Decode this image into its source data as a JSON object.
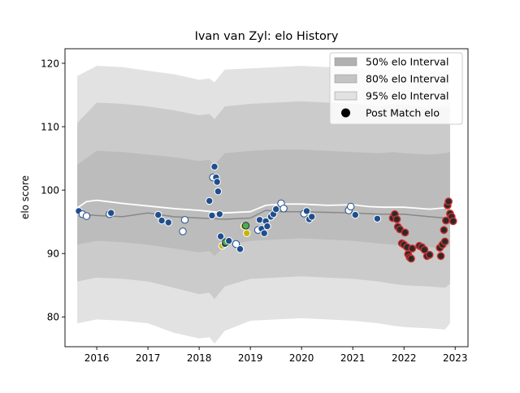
{
  "chart_data": {
    "type": "line",
    "title": "Ivan van Zyl: elo History",
    "xlabel": "",
    "ylabel": "elo score",
    "xlim": [
      2015.38,
      2023.25
    ],
    "ylim": [
      75.3,
      122.3
    ],
    "x_ticks": [
      2016,
      2017,
      2018,
      2019,
      2020,
      2021,
      2022,
      2023
    ],
    "x_tick_labels": [
      "2016",
      "2017",
      "2018",
      "2019",
      "2020",
      "2021",
      "2022",
      "2023"
    ],
    "y_ticks": [
      80,
      90,
      100,
      110,
      120
    ],
    "y_tick_labels": [
      "80",
      "90",
      "100",
      "110",
      "120"
    ],
    "grid": false,
    "legend_position": "top-right",
    "legend": [
      {
        "label": "50% elo Interval",
        "kind": "patch",
        "color": "#b0b0b0"
      },
      {
        "label": "80% elo Interval",
        "kind": "patch",
        "color": "#c4c4c4"
      },
      {
        "label": "95% elo Interval",
        "kind": "patch",
        "color": "#e2e2e2"
      },
      {
        "label": "Post Match elo",
        "kind": "marker",
        "color": "#000000"
      }
    ],
    "colors": {
      "band95": "#e2e2e2",
      "band80": "#cbcbcb",
      "band50": "#bcbcbc",
      "mean_line": "#ffffff",
      "median_line": "#888888",
      "point_blue": "#1f4e8c",
      "point_white": "#ffffff",
      "point_green": "#4caf50",
      "point_yellow": "#c8b400",
      "point_red_edge": "#d23030",
      "point_dark": "#2a2a2a"
    },
    "bands": {
      "x": [
        2015.62,
        2016.0,
        2016.5,
        2017.0,
        2017.5,
        2018.0,
        2018.2,
        2018.3,
        2018.5,
        2019.0,
        2019.5,
        2020.0,
        2020.5,
        2021.0,
        2021.5,
        2021.8,
        2022.0,
        2022.5,
        2022.8,
        2022.9
      ],
      "p95_upper": [
        118.0,
        119.6,
        119.4,
        118.8,
        118.3,
        117.4,
        117.6,
        117.0,
        119.0,
        119.2,
        119.4,
        119.6,
        119.4,
        119.3,
        118.8,
        119.2,
        119.0,
        118.6,
        118.8,
        119.0
      ],
      "p95_lower": [
        79.0,
        79.6,
        79.4,
        79.0,
        77.5,
        76.6,
        76.8,
        75.8,
        77.8,
        79.4,
        79.6,
        79.8,
        79.6,
        79.4,
        79.0,
        78.6,
        78.4,
        78.2,
        78.0,
        79.0
      ],
      "p80_upper": [
        110.6,
        113.8,
        113.6,
        113.2,
        112.6,
        111.8,
        112.0,
        111.2,
        113.2,
        113.6,
        113.8,
        114.0,
        113.8,
        113.6,
        113.2,
        113.6,
        113.4,
        113.0,
        113.2,
        113.4
      ],
      "p80_lower": [
        85.6,
        86.2,
        86.0,
        85.6,
        84.6,
        83.6,
        83.8,
        82.8,
        84.8,
        86.0,
        86.2,
        86.4,
        86.2,
        86.0,
        85.6,
        85.2,
        85.0,
        84.8,
        84.6,
        85.2
      ],
      "p50_upper": [
        104.0,
        106.2,
        106.0,
        105.6,
        105.2,
        104.6,
        104.8,
        104.0,
        105.8,
        106.2,
        106.4,
        106.4,
        106.2,
        106.0,
        105.8,
        106.0,
        105.8,
        105.6,
        105.8,
        106.0
      ],
      "p50_lower": [
        91.4,
        92.0,
        91.8,
        91.4,
        90.8,
        90.2,
        90.4,
        89.6,
        91.2,
        92.0,
        92.2,
        92.4,
        92.2,
        92.0,
        91.6,
        91.4,
        91.2,
        91.0,
        90.8,
        91.4
      ]
    },
    "mean_line": {
      "x": [
        2015.62,
        2015.8,
        2016.0,
        2016.5,
        2017.0,
        2017.5,
        2018.0,
        2018.5,
        2019.0,
        2019.3,
        2019.6,
        2020.0,
        2020.5,
        2021.0,
        2021.3,
        2021.6,
        2022.0,
        2022.5,
        2022.8,
        2022.9
      ],
      "y": [
        97.2,
        98.2,
        98.4,
        97.9,
        97.5,
        97.1,
        96.8,
        96.4,
        96.6,
        97.6,
        97.8,
        97.8,
        97.6,
        97.7,
        97.4,
        97.3,
        97.3,
        97.0,
        97.2,
        97.6
      ]
    },
    "median_line": {
      "x": [
        2015.62,
        2016.0,
        2016.5,
        2017.0,
        2017.5,
        2018.0,
        2018.5,
        2019.0,
        2019.3,
        2019.6,
        2020.0,
        2020.5,
        2021.0,
        2021.5,
        2022.0,
        2022.5,
        2022.8,
        2022.9
      ],
      "y": [
        96.2,
        96.0,
        95.8,
        96.4,
        95.8,
        95.6,
        95.4,
        95.6,
        96.8,
        96.6,
        96.6,
        96.5,
        96.4,
        96.2,
        96.2,
        95.8,
        95.6,
        96.0
      ]
    },
    "points": [
      {
        "x": 2015.65,
        "y": 96.7,
        "style": "blue"
      },
      {
        "x": 2015.72,
        "y": 96.2,
        "style": "white"
      },
      {
        "x": 2015.8,
        "y": 95.9,
        "style": "white"
      },
      {
        "x": 2016.25,
        "y": 96.2,
        "style": "white"
      },
      {
        "x": 2016.28,
        "y": 96.4,
        "style": "blue"
      },
      {
        "x": 2017.2,
        "y": 96.1,
        "style": "blue"
      },
      {
        "x": 2017.27,
        "y": 95.2,
        "style": "blue"
      },
      {
        "x": 2017.4,
        "y": 94.9,
        "style": "blue"
      },
      {
        "x": 2017.68,
        "y": 93.5,
        "style": "white"
      },
      {
        "x": 2017.72,
        "y": 95.3,
        "style": "white"
      },
      {
        "x": 2018.2,
        "y": 98.3,
        "style": "blue"
      },
      {
        "x": 2018.25,
        "y": 96.0,
        "style": "blue"
      },
      {
        "x": 2018.27,
        "y": 102.0,
        "style": "white"
      },
      {
        "x": 2018.3,
        "y": 103.7,
        "style": "blue"
      },
      {
        "x": 2018.33,
        "y": 102.0,
        "style": "blue"
      },
      {
        "x": 2018.35,
        "y": 101.3,
        "style": "blue"
      },
      {
        "x": 2018.37,
        "y": 99.8,
        "style": "blue"
      },
      {
        "x": 2018.4,
        "y": 96.2,
        "style": "blue"
      },
      {
        "x": 2018.42,
        "y": 92.7,
        "style": "blue"
      },
      {
        "x": 2018.45,
        "y": 91.2,
        "style": "yellow"
      },
      {
        "x": 2018.5,
        "y": 91.5,
        "style": "blue"
      },
      {
        "x": 2018.52,
        "y": 91.8,
        "style": "green"
      },
      {
        "x": 2018.58,
        "y": 92.0,
        "style": "blue"
      },
      {
        "x": 2018.72,
        "y": 91.5,
        "style": "white"
      },
      {
        "x": 2018.8,
        "y": 90.7,
        "style": "blue"
      },
      {
        "x": 2018.88,
        "y": 94.3,
        "style": "yellow"
      },
      {
        "x": 2018.91,
        "y": 94.4,
        "style": "green"
      },
      {
        "x": 2018.93,
        "y": 93.2,
        "style": "yellow"
      },
      {
        "x": 2019.15,
        "y": 93.7,
        "style": "white"
      },
      {
        "x": 2019.18,
        "y": 95.3,
        "style": "blue"
      },
      {
        "x": 2019.22,
        "y": 93.9,
        "style": "blue"
      },
      {
        "x": 2019.27,
        "y": 93.2,
        "style": "blue"
      },
      {
        "x": 2019.3,
        "y": 95.1,
        "style": "blue"
      },
      {
        "x": 2019.33,
        "y": 94.3,
        "style": "blue"
      },
      {
        "x": 2019.4,
        "y": 95.8,
        "style": "blue"
      },
      {
        "x": 2019.45,
        "y": 96.2,
        "style": "blue"
      },
      {
        "x": 2019.5,
        "y": 97.0,
        "style": "blue"
      },
      {
        "x": 2019.6,
        "y": 97.9,
        "style": "white"
      },
      {
        "x": 2019.65,
        "y": 97.1,
        "style": "white"
      },
      {
        "x": 2020.05,
        "y": 96.3,
        "style": "white"
      },
      {
        "x": 2020.1,
        "y": 96.7,
        "style": "blue"
      },
      {
        "x": 2020.15,
        "y": 95.4,
        "style": "blue"
      },
      {
        "x": 2020.2,
        "y": 95.8,
        "style": "blue"
      },
      {
        "x": 2020.92,
        "y": 96.8,
        "style": "white"
      },
      {
        "x": 2020.96,
        "y": 97.4,
        "style": "white"
      },
      {
        "x": 2021.05,
        "y": 96.1,
        "style": "blue"
      },
      {
        "x": 2021.48,
        "y": 95.5,
        "style": "blue"
      },
      {
        "x": 2021.78,
        "y": 95.6,
        "style": "red"
      },
      {
        "x": 2021.82,
        "y": 96.2,
        "style": "red"
      },
      {
        "x": 2021.86,
        "y": 95.4,
        "style": "red"
      },
      {
        "x": 2021.88,
        "y": 94.2,
        "style": "red"
      },
      {
        "x": 2021.92,
        "y": 93.8,
        "style": "red"
      },
      {
        "x": 2021.96,
        "y": 91.6,
        "style": "red"
      },
      {
        "x": 2022.0,
        "y": 91.4,
        "style": "red"
      },
      {
        "x": 2022.02,
        "y": 93.3,
        "style": "red"
      },
      {
        "x": 2022.06,
        "y": 91.0,
        "style": "red"
      },
      {
        "x": 2022.08,
        "y": 89.9,
        "style": "red"
      },
      {
        "x": 2022.11,
        "y": 89.4,
        "style": "red"
      },
      {
        "x": 2022.14,
        "y": 89.2,
        "style": "red"
      },
      {
        "x": 2022.16,
        "y": 90.8,
        "style": "red"
      },
      {
        "x": 2022.3,
        "y": 91.2,
        "style": "red"
      },
      {
        "x": 2022.35,
        "y": 91.0,
        "style": "red"
      },
      {
        "x": 2022.4,
        "y": 90.6,
        "style": "red"
      },
      {
        "x": 2022.45,
        "y": 89.6,
        "style": "red"
      },
      {
        "x": 2022.5,
        "y": 89.8,
        "style": "red"
      },
      {
        "x": 2022.7,
        "y": 90.9,
        "style": "red"
      },
      {
        "x": 2022.72,
        "y": 89.6,
        "style": "red"
      },
      {
        "x": 2022.75,
        "y": 91.4,
        "style": "red"
      },
      {
        "x": 2022.78,
        "y": 93.7,
        "style": "red"
      },
      {
        "x": 2022.8,
        "y": 91.9,
        "style": "red"
      },
      {
        "x": 2022.82,
        "y": 95.2,
        "style": "red"
      },
      {
        "x": 2022.85,
        "y": 97.6,
        "style": "red"
      },
      {
        "x": 2022.87,
        "y": 98.2,
        "style": "red"
      },
      {
        "x": 2022.9,
        "y": 96.3,
        "style": "red"
      },
      {
        "x": 2022.93,
        "y": 95.8,
        "style": "red"
      },
      {
        "x": 2022.96,
        "y": 95.1,
        "style": "red"
      }
    ]
  }
}
